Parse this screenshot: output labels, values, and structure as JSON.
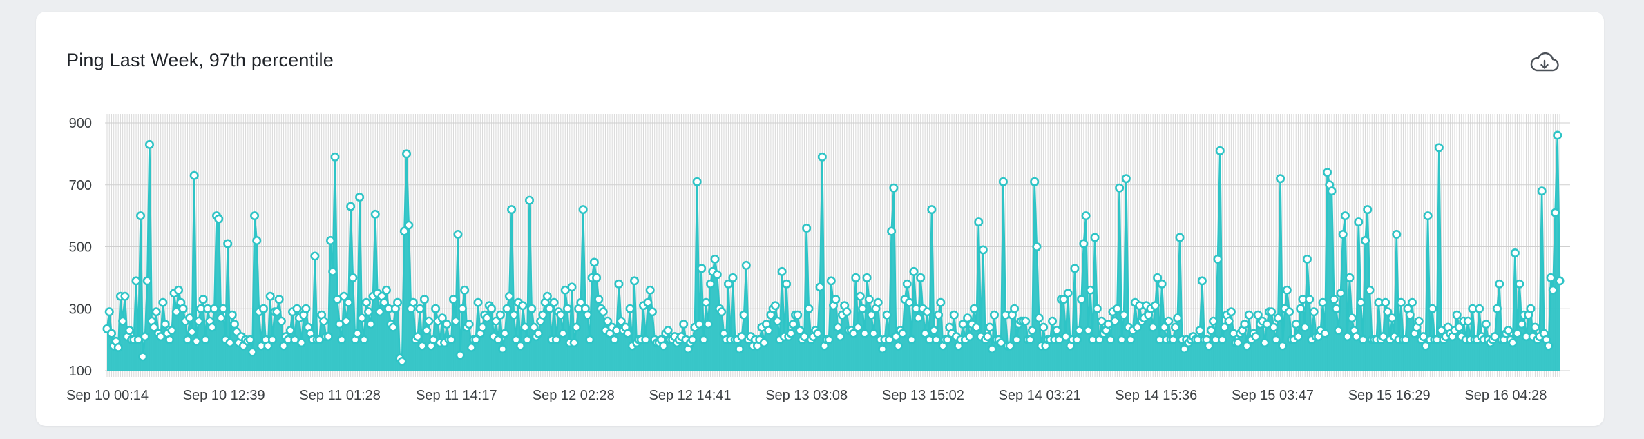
{
  "card": {
    "title": "Ping Last Week, 97th percentile",
    "download_icon": "cloud-download-icon"
  },
  "colors": {
    "series": "#2ec4c6",
    "grid": "#d9d9d9",
    "marker_fill": "#ffffff"
  },
  "chart_data": {
    "type": "line",
    "title": "Ping Last Week, 97th percentile",
    "xlabel": "",
    "ylabel": "",
    "ylim": [
      100,
      900
    ],
    "yticks": [
      100,
      300,
      500,
      700,
      900
    ],
    "x_tick_labels": [
      "Sep 10 00:14",
      "Sep 10 12:39",
      "Sep 11 01:28",
      "Sep 11 14:17",
      "Sep 12 02:28",
      "Sep 12 14:41",
      "Sep 13 03:08",
      "Sep 13 15:02",
      "Sep 14 03:21",
      "Sep 14 15:36",
      "Sep 15 03:47",
      "Sep 15 16:29",
      "Sep 16 04:28"
    ],
    "grid": true,
    "legend": "none",
    "series": [
      {
        "values": [
          235,
          290,
          220,
          180,
          195,
          175,
          340,
          260,
          340,
          210,
          230,
          200,
          200,
          390,
          200,
          600,
          145,
          210,
          390,
          830,
          260,
          240,
          290,
          220,
          210,
          320,
          250,
          220,
          200,
          230,
          350,
          290,
          360,
          320,
          300,
          260,
          200,
          270,
          225,
          730,
          195,
          260,
          300,
          330,
          200,
          300,
          260,
          240,
          300,
          600,
          590,
          270,
          300,
          200,
          510,
          190,
          280,
          250,
          225,
          190,
          210,
          180,
          200,
          195,
          200,
          160,
          600,
          520,
          290,
          180,
          300,
          200,
          180,
          340,
          200,
          290,
          290,
          330,
          260,
          180,
          210,
          200,
          230,
          290,
          200,
          300,
          270,
          190,
          280,
          300,
          240,
          220,
          200,
          470,
          200,
          200,
          280,
          260,
          210,
          210,
          520,
          420,
          790,
          330,
          250,
          200,
          340,
          260,
          320,
          630,
          400,
          200,
          220,
          660,
          270,
          200,
          320,
          290,
          250,
          340,
          605,
          350,
          290,
          340,
          320,
          360,
          300,
          250,
          240,
          300,
          320,
          140,
          130,
          550,
          800,
          570,
          300,
          320,
          200,
          210,
          300,
          180,
          330,
          230,
          260,
          180,
          200,
          300,
          260,
          190,
          270,
          190,
          250,
          200,
          200,
          330,
          260,
          540,
          150,
          300,
          360,
          240,
          250,
          175,
          200,
          200,
          320,
          220,
          240,
          280,
          270,
          310,
          300,
          210,
          260,
          200,
          280,
          170,
          220,
          300,
          340,
          620,
          280,
          200,
          320,
          180,
          310,
          240,
          200,
          650,
          300,
          240,
          210,
          220,
          260,
          280,
          320,
          340,
          300,
          200,
          320,
          200,
          290,
          280,
          220,
          360,
          300,
          190,
          370,
          190,
          240,
          300,
          320,
          620,
          300,
          280,
          200,
          400,
          450,
          400,
          330,
          300,
          290,
          230,
          260,
          220,
          240,
          200,
          230,
          380,
          260,
          230,
          240,
          220,
          300,
          180,
          390,
          190,
          200,
          200,
          310,
          200,
          320,
          360,
          290,
          200,
          190,
          190,
          200,
          180,
          220,
          230,
          200,
          200,
          210,
          190,
          200,
          210,
          250,
          200,
          170,
          190,
          200,
          240,
          710,
          250,
          430,
          200,
          320,
          250,
          380,
          420,
          460,
          410,
          300,
          290,
          220,
          200,
          380,
          200,
          400,
          200,
          200,
          170,
          210,
          280,
          440,
          200,
          210,
          180,
          200,
          180,
          200,
          240,
          190,
          250,
          230,
          280,
          300,
          310,
          260,
          200,
          420,
          210,
          380,
          210,
          220,
          250,
          280,
          280,
          230,
          200,
          210,
          560,
          300,
          200,
          210,
          230,
          220,
          370,
          790,
          180,
          200,
          200,
          390,
          310,
          330,
          240,
          210,
          280,
          310,
          290,
          230,
          230,
          220,
          400,
          240,
          340,
          300,
          220,
          400,
          330,
          280,
          220,
          300,
          320,
          200,
          170,
          200,
          280,
          200,
          550,
          690,
          210,
          180,
          230,
          220,
          330,
          380,
          320,
          200,
          420,
          300,
          270,
          400,
          300,
          220,
          290,
          200,
          620,
          230,
          200,
          280,
          320,
          180,
          200,
          200,
          240,
          220,
          280,
          210,
          180,
          200,
          250,
          200,
          270,
          210,
          250,
          300,
          240,
          580,
          210,
          490,
          200,
          210,
          240,
          170,
          280,
          200,
          200,
          190,
          710,
          280,
          180,
          180,
          280,
          300,
          200,
          250,
          260,
          260,
          260,
          200,
          200,
          230,
          710,
          500,
          270,
          180,
          240,
          180,
          200,
          200,
          260,
          200,
          230,
          200,
          330,
          330,
          210,
          350,
          180,
          200,
          430,
          200,
          230,
          330,
          510,
          600,
          230,
          360,
          200,
          530,
          300,
          200,
          260,
          220,
          230,
          250,
          200,
          290,
          260,
          300,
          690,
          200,
          280,
          720,
          240,
          200,
          230,
          320,
          240,
          310,
          260,
          270,
          310,
          280,
          300,
          240,
          310,
          400,
          200,
          380,
          240,
          200,
          260,
          200,
          200,
          240,
          270,
          530,
          200,
          170,
          200,
          190,
          200,
          210,
          200,
          200,
          230,
          390,
          200,
          200,
          180,
          230,
          260,
          200,
          460,
          810,
          200,
          240,
          280,
          260,
          290,
          220,
          190,
          190,
          220,
          230,
          250,
          180,
          280,
          200,
          220,
          210,
          280,
          250,
          260,
          190,
          250,
          290,
          290,
          240,
          200,
          270,
          720,
          180,
          300,
          360,
          290,
          200,
          200,
          250,
          210,
          300,
          330,
          240,
          460,
          330,
          200,
          290,
          210,
          210,
          230,
          320,
          220,
          740,
          700,
          680,
          330,
          300,
          230,
          350,
          540,
          600,
          210,
          400,
          270,
          230,
          210,
          580,
          320,
          200,
          520,
          620,
          360,
          200,
          200,
          200,
          320,
          200,
          210,
          320,
          290,
          200,
          270,
          210,
          540,
          200,
          320,
          200,
          200,
          300,
          280,
          320,
          220,
          240,
          260,
          200,
          210,
          180,
          600,
          200,
          300,
          200,
          200,
          820,
          230,
          200,
          210,
          240,
          220,
          210,
          230,
          280,
          240,
          210,
          260,
          200,
          260,
          200,
          300,
          200,
          200,
          300,
          210,
          200,
          250,
          200,
          190,
          200,
          210,
          300,
          380,
          200,
          200,
          220,
          230,
          200,
          190,
          480,
          220,
          380,
          250,
          280,
          210,
          280,
          300,
          210,
          240,
          200,
          210,
          680,
          220,
          200,
          180,
          400,
          360,
          610,
          860,
          390
        ]
      }
    ]
  }
}
